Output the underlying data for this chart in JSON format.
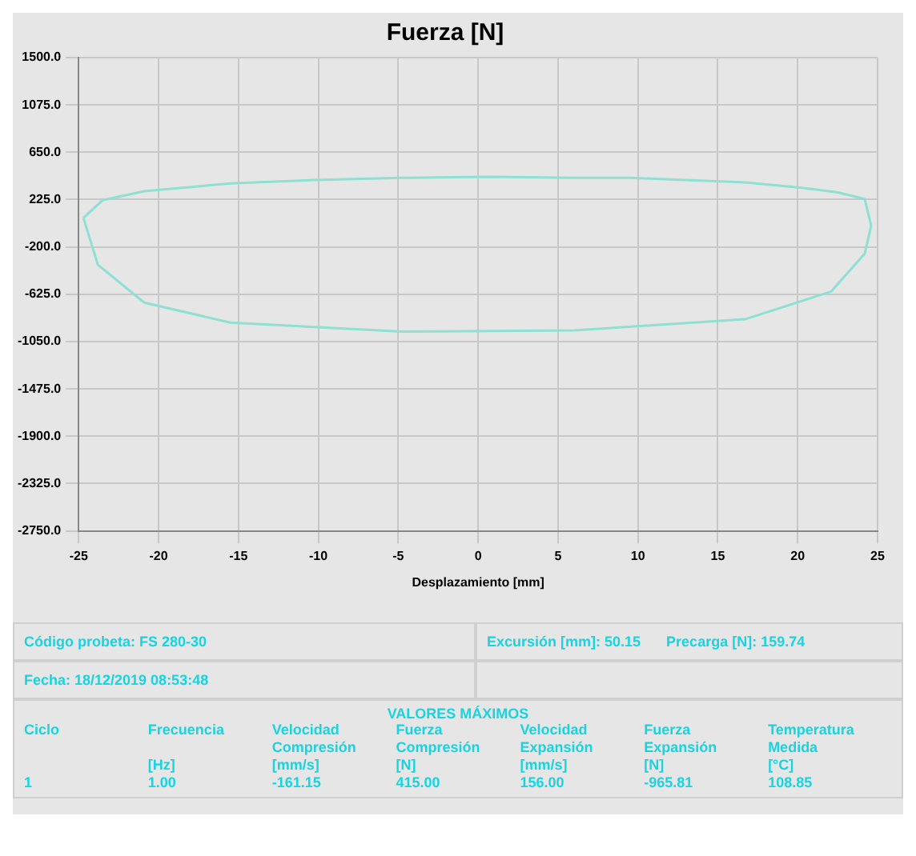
{
  "chart_data": {
    "type": "line",
    "title": "Fuerza [N]",
    "xlabel": "Desplazamiento [mm]",
    "xlim": [
      -25,
      25
    ],
    "xticks": [
      -25,
      -20,
      -15,
      -10,
      -5,
      0,
      5,
      10,
      15,
      20,
      25
    ],
    "ylim": [
      -2750,
      1500
    ],
    "yticks": [
      {
        "value": 1500,
        "label": "1500.0"
      },
      {
        "value": 1075,
        "label": "1075.0"
      },
      {
        "value": 650,
        "label": "650.0"
      },
      {
        "value": 225,
        "label": "225.0"
      },
      {
        "value": -200,
        "label": "-200.0"
      },
      {
        "value": -625,
        "label": "-625.0"
      },
      {
        "value": -1050,
        "label": "-1050.0"
      },
      {
        "value": -1475,
        "label": "-1475.0"
      },
      {
        "value": -1900,
        "label": "-1900.0"
      },
      {
        "value": -2325,
        "label": "-2325.0"
      },
      {
        "value": -2750,
        "label": "-2750.0"
      }
    ],
    "grid": true,
    "legend": false,
    "marker": "none",
    "line_style": "solid",
    "series": [
      {
        "color": "#8ee0d2",
        "x": [
          -24.7,
          -23.5,
          -20.9,
          -15.5,
          -10.2,
          -4.8,
          0.6,
          6.0,
          9.5,
          16.7,
          20.3,
          22.5,
          24.2,
          24.6
        ],
        "values": [
          60,
          220,
          300,
          370,
          400,
          420,
          430,
          420,
          420,
          380,
          330,
          290,
          230,
          -10
        ]
      },
      {
        "color": "#8ee0d2",
        "x": [
          -24.7,
          -23.8,
          -20.9,
          -15.5,
          -4.8,
          6.0,
          16.7,
          22.1,
          24.2,
          24.6
        ],
        "values": [
          60,
          -360,
          -700,
          -880,
          -960,
          -950,
          -850,
          -600,
          -260,
          -10
        ]
      }
    ],
    "annotations": [
      "Código probeta: FS 280-30",
      "Excursión [mm]: 50.15",
      "Precarga [N]: 159.74",
      "Fecha: 18/12/2019 08:53:48",
      "VALORES MÁXIMOS",
      "Ciclo",
      "Frecuencia\n\n[Hz]",
      "Velocidad\nCompresión\n[mm/s]",
      "Fuerza\nCompresión\n[N]",
      "Velocidad\nExpansión\n[mm/s]",
      "Fuerza\nExpansión\n[N]",
      "Temperatura\nMedida\n[°C]",
      "1",
      "1.00",
      "-161.15",
      "415.00",
      "156.00",
      "-965.81",
      "108.85"
    ]
  }
}
